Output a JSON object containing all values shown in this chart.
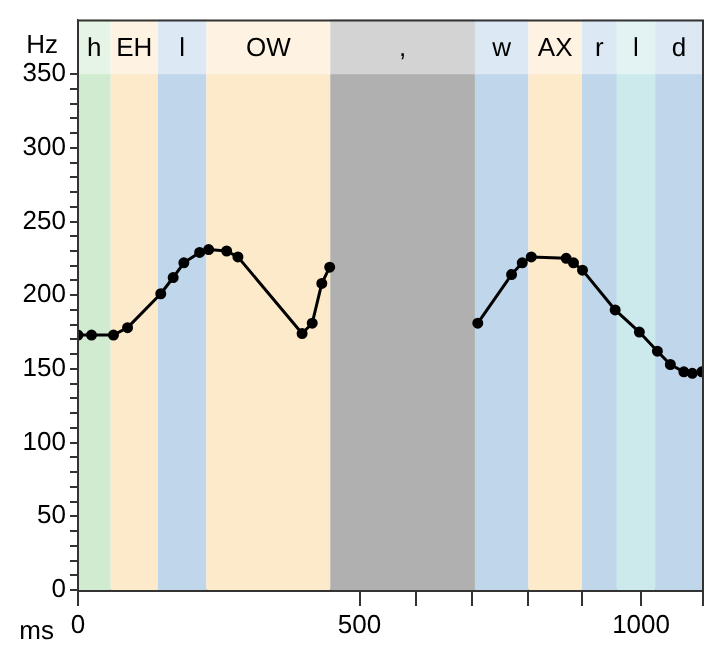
{
  "chart_data": {
    "type": "line",
    "xlabel": "ms",
    "ylabel": "Hz",
    "xlim": [
      0,
      1110
    ],
    "xticks": [
      0,
      500,
      {
        "value": 600,
        "label": null
      },
      {
        "value": 700,
        "label": null
      },
      {
        "value": 800,
        "label": null
      },
      {
        "value": 895,
        "label": null
      },
      1000,
      {
        "value": 1110,
        "label": null
      }
    ],
    "ylim": [
      0,
      387
    ],
    "yticks": [
      0,
      {
        "value": 10,
        "label": null
      },
      {
        "value": 20,
        "label": null
      },
      {
        "value": 30,
        "label": null
      },
      {
        "value": 40,
        "label": null
      },
      50,
      {
        "value": 60,
        "label": null
      },
      {
        "value": 70,
        "label": null
      },
      {
        "value": 80,
        "label": null
      },
      {
        "value": 90,
        "label": null
      },
      100,
      {
        "value": 110,
        "label": null
      },
      {
        "value": 120,
        "label": null
      },
      {
        "value": 130,
        "label": null
      },
      {
        "value": 140,
        "label": null
      },
      150,
      {
        "value": 160,
        "label": null
      },
      {
        "value": 170,
        "label": null
      },
      {
        "value": 180,
        "label": null
      },
      {
        "value": 190,
        "label": null
      },
      200,
      {
        "value": 210,
        "label": null
      },
      {
        "value": 220,
        "label": null
      },
      {
        "value": 230,
        "label": null
      },
      {
        "value": 240,
        "label": null
      },
      250,
      {
        "value": 260,
        "label": null
      },
      {
        "value": 270,
        "label": null
      },
      {
        "value": 280,
        "label": null
      },
      {
        "value": 290,
        "label": null
      },
      300,
      {
        "value": 310,
        "label": null
      },
      {
        "value": 320,
        "label": null
      },
      {
        "value": 330,
        "label": null
      },
      {
        "value": 340,
        "label": null
      },
      350
    ],
    "grid": false,
    "legend": false,
    "marker": "circle",
    "line_style": "solid",
    "series": [
      {
        "color": "#000000",
        "x": [
          0,
          24,
          63,
          88,
          147,
          169,
          188,
          216,
          232,
          264,
          284,
          398,
          416,
          433,
          447,
          580,
          710,
          770,
          789,
          805,
          867,
          880,
          896,
          954,
          997,
          1029,
          1052,
          1076,
          1091,
          1108
        ],
        "values": [
          173,
          173,
          173,
          178,
          201,
          212,
          222,
          229,
          231,
          230,
          226,
          174,
          181,
          208,
          219,
          null,
          181,
          214,
          222,
          226,
          225,
          222,
          217,
          190,
          175,
          162,
          153,
          148,
          147,
          148
        ]
      }
    ],
    "bands": [
      {
        "axis": "x",
        "from": 0,
        "to": 58,
        "label": "h",
        "color": "#d0ebd0"
      },
      {
        "axis": "x",
        "from": 58,
        "to": 142,
        "label": "EH",
        "color": "#fdeacb"
      },
      {
        "axis": "x",
        "from": 142,
        "to": 228,
        "label": "l",
        "color": "#c0d6ea"
      },
      {
        "axis": "x",
        "from": 228,
        "to": 448,
        "label": "OW",
        "color": "#fdeacb"
      },
      {
        "axis": "x",
        "from": 448,
        "to": 705,
        "label": ",",
        "color": "#b0b0b0"
      },
      {
        "axis": "x",
        "from": 705,
        "to": 800,
        "label": "w",
        "color": "#c0d6ea"
      },
      {
        "axis": "x",
        "from": 800,
        "to": 895,
        "label": "AX",
        "color": "#fdeacb"
      },
      {
        "axis": "x",
        "from": 895,
        "to": 957,
        "label": "r",
        "color": "#c0d6ea"
      },
      {
        "axis": "x",
        "from": 957,
        "to": 1025,
        "label": "l",
        "color": "#cce9ec"
      },
      {
        "axis": "x",
        "from": 1025,
        "to": 1110,
        "label": "d",
        "color": "#c0d6ea"
      }
    ]
  }
}
